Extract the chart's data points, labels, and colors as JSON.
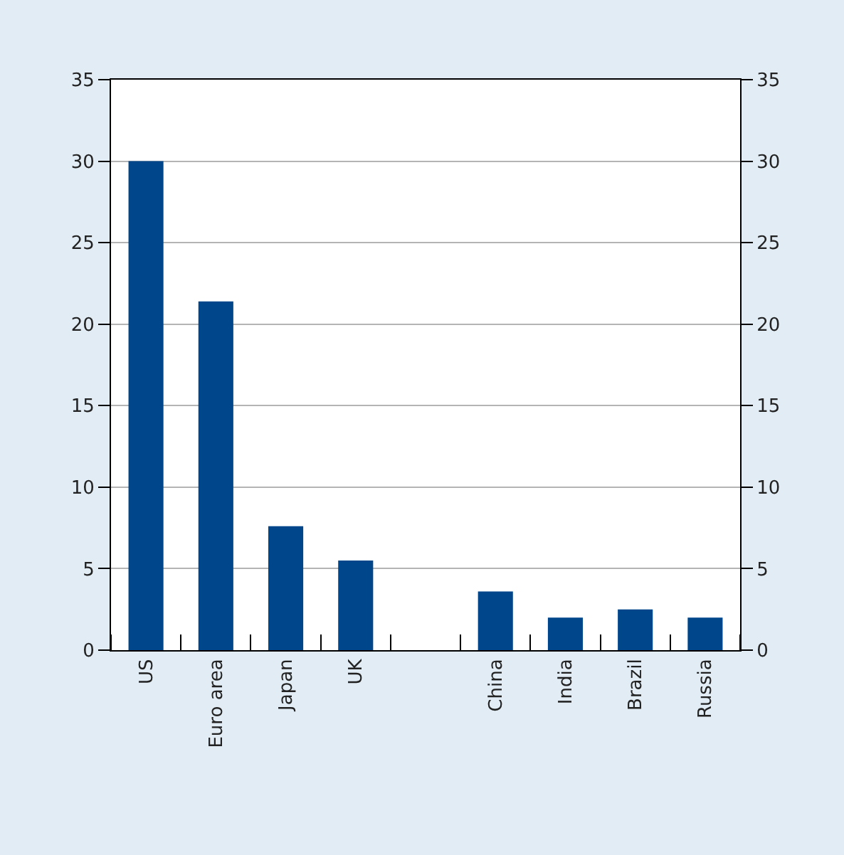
{
  "chart_data": {
    "type": "bar",
    "categories": [
      "US",
      "Euro area",
      "Japan",
      "UK",
      null,
      "China",
      "India",
      "Brazil",
      "Russia"
    ],
    "values": [
      30,
      21.4,
      7.6,
      5.5,
      null,
      3.6,
      2.0,
      2.5,
      2.0
    ],
    "color": "#00468b",
    "ylim": [
      0,
      35
    ],
    "yticks": [
      0,
      5,
      10,
      15,
      20,
      25,
      30,
      35
    ],
    "y2lim": [
      0,
      35
    ],
    "y2ticks": [
      0,
      5,
      10,
      15,
      20,
      25,
      30,
      35
    ],
    "grid": "y",
    "legend": false
  }
}
